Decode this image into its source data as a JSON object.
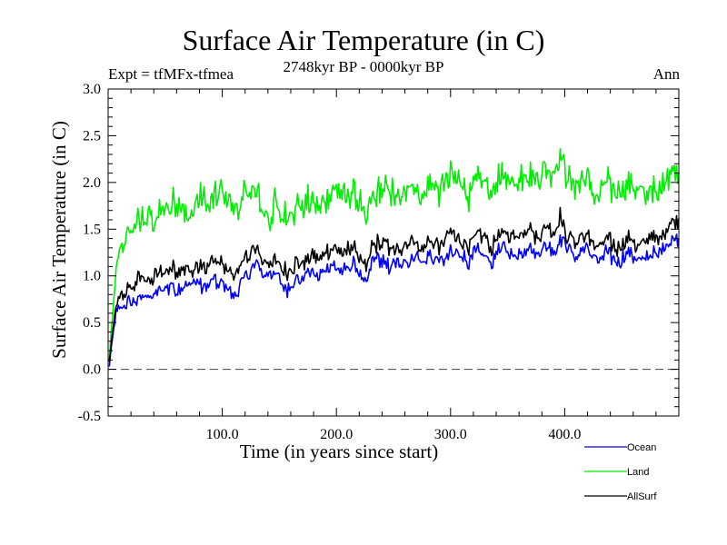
{
  "chart_data": {
    "type": "line",
    "title": "Surface Air Temperature (in C)",
    "subtitle": "2748kyr BP - 0000kyr BP",
    "annotation_left": "Expt = tfMFx-tfmea",
    "annotation_right": "Ann",
    "xlabel": "Time (in years since start)",
    "ylabel": "Surface Air Temperature (in C)",
    "xlim": [
      0,
      500
    ],
    "ylim": [
      -0.5,
      3.0
    ],
    "xticks": [
      100,
      200,
      300,
      400
    ],
    "xtick_labels": [
      "100.0",
      "200.0",
      "300.0",
      "400.0"
    ],
    "yticks": [
      -0.5,
      0.0,
      0.5,
      1.0,
      1.5,
      2.0,
      2.5,
      3.0
    ],
    "ytick_labels": [
      "-0.5",
      "0.0",
      "0.5",
      "1.0",
      "1.5",
      "2.0",
      "2.5",
      "3.0"
    ],
    "reference_line": {
      "y": 0.0,
      "style": "dashed"
    },
    "grid": false,
    "legend_position": "bottom-right-outside",
    "sample_step_years": 5,
    "series": [
      {
        "name": "Ocean",
        "color": "#0000ff",
        "values": [
          0.05,
          0.55,
          0.65,
          0.7,
          0.72,
          0.75,
          0.8,
          0.75,
          0.8,
          0.85,
          0.85,
          0.9,
          0.85,
          0.9,
          0.9,
          0.95,
          0.9,
          0.85,
          0.95,
          0.9,
          0.9,
          0.85,
          0.75,
          0.9,
          1.0,
          1.05,
          1.15,
          1.0,
          1.05,
          1.0,
          0.95,
          0.85,
          0.9,
          0.95,
          1.0,
          1.05,
          1.0,
          1.0,
          1.05,
          1.1,
          1.1,
          1.05,
          1.1,
          1.15,
          1.0,
          0.9,
          1.15,
          1.2,
          1.15,
          1.1,
          1.15,
          1.1,
          1.15,
          1.2,
          1.2,
          1.15,
          1.25,
          1.2,
          1.15,
          1.2,
          1.25,
          1.25,
          1.2,
          1.15,
          1.25,
          1.25,
          1.2,
          1.15,
          1.25,
          1.3,
          1.25,
          1.2,
          1.25,
          1.3,
          1.3,
          1.25,
          1.3,
          1.35,
          1.25,
          1.4,
          1.3,
          1.25,
          1.2,
          1.3,
          1.25,
          1.2,
          1.15,
          1.25,
          1.2,
          1.15,
          1.2,
          1.25,
          1.2,
          1.15,
          1.2,
          1.25,
          1.2,
          1.3,
          1.35,
          1.4
        ]
      },
      {
        "name": "Land",
        "color": "#00ee00",
        "values": [
          0.1,
          0.9,
          1.3,
          1.45,
          1.5,
          1.55,
          1.6,
          1.65,
          1.55,
          1.7,
          1.8,
          1.75,
          1.8,
          1.75,
          1.6,
          1.7,
          1.85,
          1.75,
          1.8,
          1.85,
          1.9,
          1.8,
          1.7,
          1.75,
          1.9,
          1.85,
          1.9,
          1.7,
          1.6,
          1.75,
          1.7,
          1.65,
          1.7,
          1.75,
          1.75,
          1.8,
          1.8,
          1.7,
          1.85,
          1.9,
          1.95,
          1.8,
          1.85,
          1.9,
          1.75,
          1.55,
          1.8,
          1.95,
          1.95,
          1.9,
          1.9,
          1.8,
          1.95,
          2.0,
          1.95,
          1.85,
          2.0,
          1.95,
          1.9,
          2.0,
          2.05,
          2.0,
          1.95,
          1.85,
          2.0,
          2.05,
          2.0,
          1.9,
          2.0,
          2.05,
          2.05,
          2.0,
          2.05,
          2.1,
          2.1,
          2.0,
          2.1,
          2.15,
          2.1,
          2.3,
          2.05,
          2.0,
          1.95,
          2.05,
          2.0,
          1.9,
          1.85,
          2.0,
          1.95,
          1.85,
          1.9,
          2.0,
          1.95,
          1.85,
          1.9,
          2.0,
          1.8,
          2.0,
          2.1,
          2.15
        ]
      },
      {
        "name": "AllSurf",
        "color": "#000000",
        "values": [
          0.08,
          0.6,
          0.8,
          0.85,
          0.88,
          0.95,
          1.0,
          0.95,
          1.0,
          1.05,
          1.05,
          1.1,
          1.05,
          1.1,
          1.05,
          1.1,
          1.1,
          1.05,
          1.15,
          1.15,
          1.1,
          1.05,
          1.0,
          1.1,
          1.2,
          1.25,
          1.3,
          1.15,
          1.15,
          1.15,
          1.1,
          1.05,
          1.1,
          1.15,
          1.15,
          1.2,
          1.2,
          1.15,
          1.25,
          1.3,
          1.3,
          1.2,
          1.3,
          1.3,
          1.2,
          1.05,
          1.3,
          1.35,
          1.35,
          1.3,
          1.3,
          1.25,
          1.35,
          1.4,
          1.35,
          1.3,
          1.4,
          1.35,
          1.3,
          1.4,
          1.45,
          1.4,
          1.35,
          1.3,
          1.4,
          1.45,
          1.4,
          1.3,
          1.4,
          1.45,
          1.45,
          1.4,
          1.45,
          1.5,
          1.5,
          1.4,
          1.5,
          1.55,
          1.45,
          1.65,
          1.45,
          1.4,
          1.35,
          1.45,
          1.4,
          1.35,
          1.3,
          1.4,
          1.35,
          1.3,
          1.35,
          1.4,
          1.35,
          1.3,
          1.35,
          1.45,
          1.35,
          1.45,
          1.55,
          1.6
        ]
      }
    ]
  }
}
